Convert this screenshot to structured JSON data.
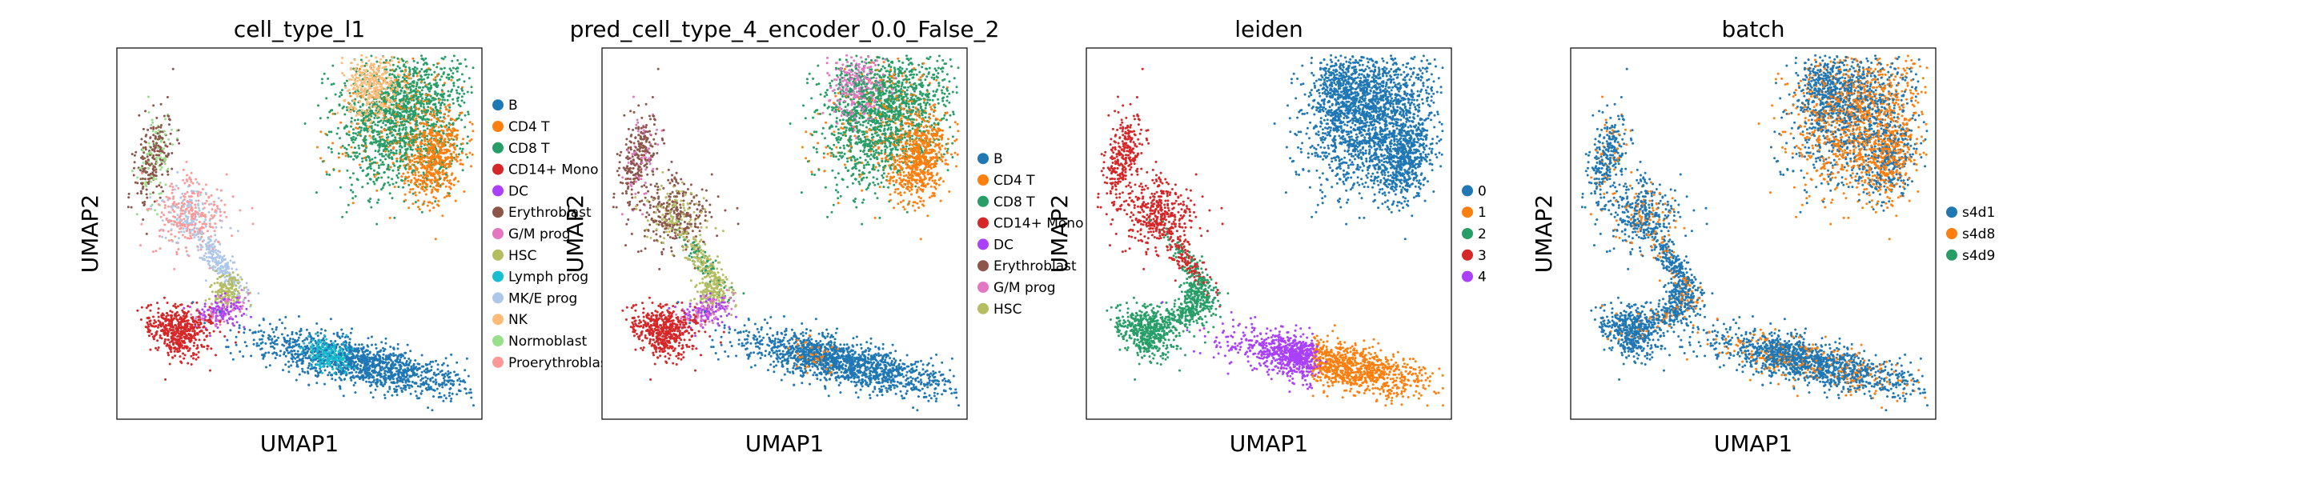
{
  "chart_data": [
    {
      "type": "scatter",
      "title": "cell_type_l1",
      "xlabel": "UMAP1",
      "ylabel": "UMAP2",
      "legend_position": "right",
      "grid": false,
      "legend": [
        {
          "name": "B",
          "color": "#1f77b4"
        },
        {
          "name": "CD4 T",
          "color": "#ff7f0e"
        },
        {
          "name": "CD8 T",
          "color": "#279e68"
        },
        {
          "name": "CD14+ Mono",
          "color": "#d62728"
        },
        {
          "name": "DC",
          "color": "#aa40fc"
        },
        {
          "name": "Erythroblast",
          "color": "#8c564b"
        },
        {
          "name": "G/M prog",
          "color": "#e377c2"
        },
        {
          "name": "HSC",
          "color": "#b5bd61"
        },
        {
          "name": "Lymph prog",
          "color": "#17becf"
        },
        {
          "name": "MK/E prog",
          "color": "#aec7e8"
        },
        {
          "name": "NK",
          "color": "#ffbb78"
        },
        {
          "name": "Normoblast",
          "color": "#98df8a"
        },
        {
          "name": "Proerythroblast",
          "color": "#ff9896"
        }
      ]
    },
    {
      "type": "scatter",
      "title": "pred_cell_type_4_encoder_0.0_False_2",
      "xlabel": "UMAP1",
      "ylabel": "UMAP2",
      "legend_position": "right",
      "grid": false,
      "legend": [
        {
          "name": "B",
          "color": "#1f77b4"
        },
        {
          "name": "CD4 T",
          "color": "#ff7f0e"
        },
        {
          "name": "CD8 T",
          "color": "#279e68"
        },
        {
          "name": "CD14+ Mono",
          "color": "#d62728"
        },
        {
          "name": "DC",
          "color": "#aa40fc"
        },
        {
          "name": "Erythroblast",
          "color": "#8c564b"
        },
        {
          "name": "G/M prog",
          "color": "#e377c2"
        },
        {
          "name": "HSC",
          "color": "#b5bd61"
        }
      ]
    },
    {
      "type": "scatter",
      "title": "leiden",
      "xlabel": "UMAP1",
      "ylabel": "UMAP2",
      "legend_position": "right",
      "grid": false,
      "legend": [
        {
          "name": "0",
          "color": "#1f77b4"
        },
        {
          "name": "1",
          "color": "#ff7f0e"
        },
        {
          "name": "2",
          "color": "#279e68"
        },
        {
          "name": "3",
          "color": "#d62728"
        },
        {
          "name": "4",
          "color": "#aa40fc"
        }
      ]
    },
    {
      "type": "scatter",
      "title": "batch",
      "xlabel": "UMAP1",
      "ylabel": "UMAP2",
      "legend_position": "right",
      "grid": false,
      "legend": [
        {
          "name": "s4d1",
          "color": "#1f77b4"
        },
        {
          "name": "s4d8",
          "color": "#ff7f0e"
        },
        {
          "name": "s4d9",
          "color": "#279e68"
        }
      ]
    }
  ]
}
